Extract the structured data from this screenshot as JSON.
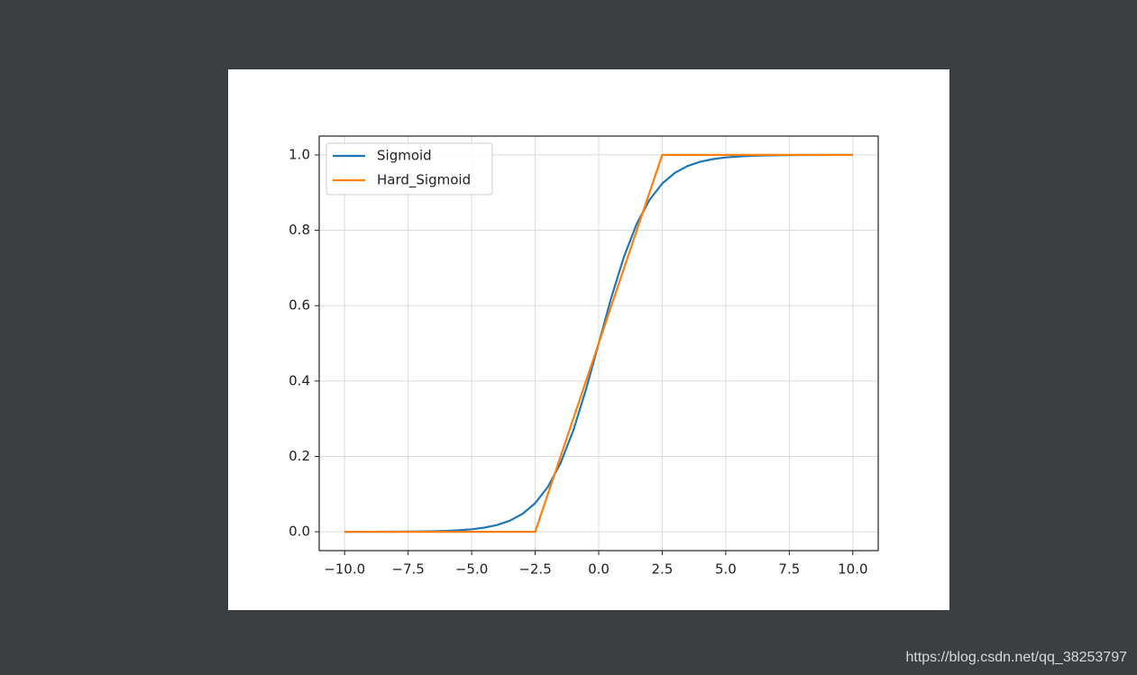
{
  "chart_data": {
    "type": "line",
    "series": [
      {
        "name": "Sigmoid",
        "color": "#1f77b4",
        "x": [
          -10,
          -9.5,
          -9,
          -8.5,
          -8,
          -7.5,
          -7,
          -6.5,
          -6,
          -5.5,
          -5,
          -4.5,
          -4,
          -3.5,
          -3,
          -2.5,
          -2,
          -1.5,
          -1,
          -0.5,
          0,
          0.5,
          1,
          1.5,
          2,
          2.5,
          3,
          3.5,
          4,
          4.5,
          5,
          5.5,
          6,
          6.5,
          7,
          7.5,
          8,
          8.5,
          9,
          9.5,
          10
        ],
        "values": [
          0,
          0.0001,
          0.0001,
          0.0002,
          0.0003,
          0.0006,
          0.0009,
          0.0015,
          0.0025,
          0.0041,
          0.0067,
          0.011,
          0.018,
          0.0293,
          0.0474,
          0.0759,
          0.1192,
          0.1824,
          0.2689,
          0.3775,
          0.5,
          0.6225,
          0.7311,
          0.8176,
          0.8808,
          0.9241,
          0.9526,
          0.9707,
          0.982,
          0.989,
          0.9933,
          0.9959,
          0.9975,
          0.9985,
          0.9991,
          0.9994,
          0.9997,
          0.9998,
          0.9999,
          0.9999,
          1
        ]
      },
      {
        "name": "Hard_Sigmoid",
        "color": "#ff7f0e",
        "x": [
          -10,
          -2.5,
          2.5,
          10
        ],
        "values": [
          0,
          0,
          1,
          1
        ]
      }
    ],
    "xlim": [
      -11,
      11
    ],
    "ylim": [
      -0.05,
      1.05
    ],
    "xticks": [
      {
        "value": -10,
        "label": "−10.0"
      },
      {
        "value": -7.5,
        "label": "−7.5"
      },
      {
        "value": -5,
        "label": "−5.0"
      },
      {
        "value": -2.5,
        "label": "−2.5"
      },
      {
        "value": 0,
        "label": "0.0"
      },
      2.5,
      {
        "value": 5,
        "label": "5.0"
      },
      7.5,
      {
        "value": 10,
        "label": "10.0"
      }
    ],
    "yticks": [
      {
        "value": 0,
        "label": "0.0"
      },
      0.2,
      0.4,
      0.6,
      0.8,
      {
        "value": 1,
        "label": "1.0"
      }
    ],
    "grid": true,
    "legend": "upper-left"
  },
  "watermark": "https://blog.csdn.net/qq_38253797"
}
